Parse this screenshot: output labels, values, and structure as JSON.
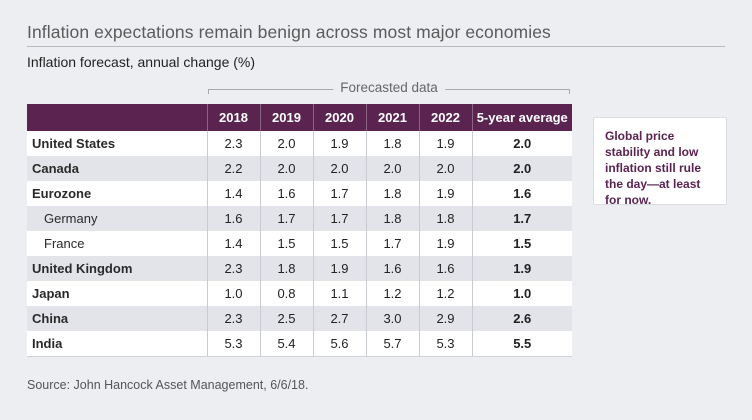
{
  "title": "Inflation expectations remain benign across most major economies",
  "subtitle": "Inflation forecast, annual change (%)",
  "forecast_label": "Forecasted data",
  "table": {
    "columns": [
      "",
      "2018",
      "2019",
      "2020",
      "2021",
      "2022",
      "5-year average"
    ],
    "rows": [
      {
        "country": "United States",
        "sub": false,
        "values": [
          "2.3",
          "2.0",
          "1.9",
          "1.8",
          "1.9"
        ],
        "average": "2.0"
      },
      {
        "country": "Canada",
        "sub": false,
        "values": [
          "2.2",
          "2.0",
          "2.0",
          "2.0",
          "2.0"
        ],
        "average": "2.0"
      },
      {
        "country": "Eurozone",
        "sub": false,
        "values": [
          "1.4",
          "1.6",
          "1.7",
          "1.8",
          "1.9"
        ],
        "average": "1.6"
      },
      {
        "country": "Germany",
        "sub": true,
        "values": [
          "1.6",
          "1.7",
          "1.7",
          "1.8",
          "1.8"
        ],
        "average": "1.7"
      },
      {
        "country": "France",
        "sub": true,
        "values": [
          "1.4",
          "1.5",
          "1.5",
          "1.7",
          "1.9"
        ],
        "average": "1.5"
      },
      {
        "country": "United Kingdom",
        "sub": false,
        "values": [
          "2.3",
          "1.8",
          "1.9",
          "1.6",
          "1.6"
        ],
        "average": "1.9"
      },
      {
        "country": "Japan",
        "sub": false,
        "values": [
          "1.0",
          "0.8",
          "1.1",
          "1.2",
          "1.2"
        ],
        "average": "1.0"
      },
      {
        "country": "China",
        "sub": false,
        "values": [
          "2.3",
          "2.5",
          "2.7",
          "3.0",
          "2.9"
        ],
        "average": "2.6"
      },
      {
        "country": "India",
        "sub": false,
        "values": [
          "5.3",
          "5.4",
          "5.6",
          "5.7",
          "5.3"
        ],
        "average": "5.5"
      }
    ]
  },
  "callout": "Global price stability and low inflation still rule the day—at least for now.",
  "source": "Source: John Hancock Asset Management, 6/6/18.",
  "colors": {
    "header_bg": "#5b2450",
    "callout_text": "#5b2450",
    "page_bg": "#edeef2",
    "stripe": "#e3e4ea"
  }
}
